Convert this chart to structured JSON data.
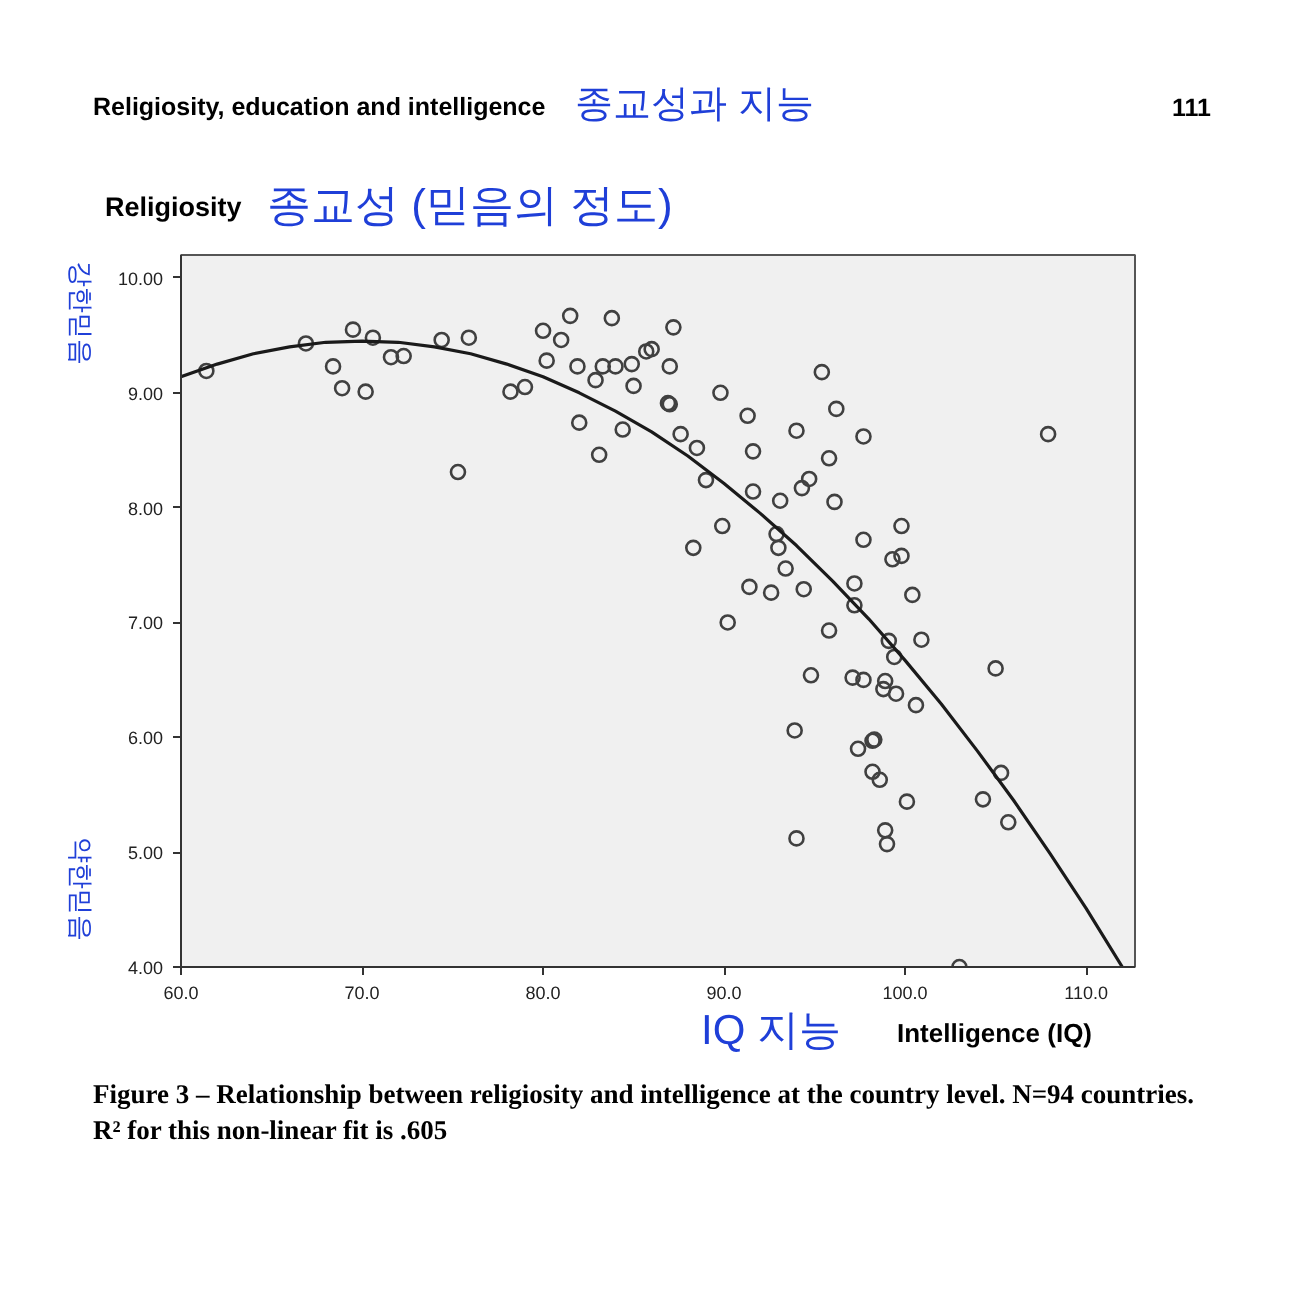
{
  "chart_data": {
    "type": "scatter",
    "title": "Religiosity, education and intelligence",
    "subtitle": "종교성과 지능",
    "ylabel": "Religiosity",
    "xlabel": "Intelligence (IQ)",
    "annotations": [
      "111",
      "종교성 (믿음의 정도)",
      "강한믿음",
      "약한믿음",
      "IQ 지능",
      "Figure 3 – Relationship between religiosity and intelligence at the country level. N=94 countries. R² for this non-linear fit is .605"
    ],
    "xlim": [
      60,
      112.7
    ],
    "ylim": [
      4,
      10.2
    ],
    "xticks": [
      {
        "value": 60,
        "label": "60.0"
      },
      {
        "value": 70,
        "label": "70.0"
      },
      {
        "value": 80,
        "label": "80.0"
      },
      {
        "value": 90,
        "label": "90.0"
      },
      {
        "value": 100,
        "label": "100.0"
      },
      {
        "value": 110,
        "label": "110.0"
      }
    ],
    "yticks": [
      {
        "value": 4,
        "label": "4.00"
      },
      {
        "value": 5,
        "label": "5.00"
      },
      {
        "value": 6,
        "label": "6.00"
      },
      {
        "value": 7,
        "label": "7.00"
      },
      {
        "value": 8,
        "label": "8.00"
      },
      {
        "value": 9,
        "label": "9.00"
      },
      {
        "value": 10,
        "label": "10.00"
      }
    ],
    "marker": "circle",
    "series": [
      {
        "color": "#404040",
        "x": [
          61.4,
          66.9,
          69.5,
          70.6,
          68.4,
          68.9,
          70.2,
          71.6,
          72.3,
          74.4,
          75.9,
          75.3,
          78.2,
          79.0,
          80.0,
          81.0,
          81.5,
          80.2,
          81.9,
          82.9,
          83.3,
          84.0,
          84.9,
          83.8,
          85.0,
          82.0,
          84.4,
          83.1,
          85.7,
          86.0,
          87.2,
          87.0,
          86.9,
          87.0,
          95.4,
          89.8,
          96.2,
          91.3,
          94.0,
          97.7,
          87.6,
          88.5,
          91.6,
          95.8,
          89.0,
          94.7,
          94.3,
          91.6,
          93.1,
          96.1,
          89.9,
          99.8,
          88.3,
          92.9,
          93.0,
          97.7,
          99.3,
          99.8,
          93.4,
          91.4,
          92.6,
          94.4,
          97.2,
          97.2,
          100.4,
          90.2,
          95.8,
          99.1,
          100.9,
          99.4,
          105.0,
          94.8,
          97.1,
          97.7,
          98.9,
          98.8,
          99.5,
          100.6,
          93.9,
          98.2,
          98.3,
          97.4,
          98.2,
          98.6,
          105.3,
          100.1,
          104.3,
          105.7,
          98.9,
          99.0,
          94.0,
          103.0,
          107.9
        ],
        "values": [
          9.19,
          9.43,
          9.55,
          9.48,
          9.23,
          9.04,
          9.01,
          9.31,
          9.32,
          9.46,
          9.48,
          8.31,
          9.01,
          9.05,
          9.54,
          9.46,
          9.67,
          9.28,
          9.23,
          9.11,
          9.23,
          9.23,
          9.25,
          9.65,
          9.06,
          8.74,
          8.68,
          8.46,
          9.36,
          9.38,
          9.57,
          9.23,
          8.91,
          8.9,
          9.18,
          9.0,
          8.86,
          8.8,
          8.67,
          8.62,
          8.64,
          8.52,
          8.49,
          8.43,
          8.24,
          8.25,
          8.17,
          8.14,
          8.06,
          8.05,
          7.84,
          7.84,
          7.65,
          7.77,
          7.65,
          7.72,
          7.55,
          7.58,
          7.47,
          7.31,
          7.26,
          7.29,
          7.34,
          7.15,
          7.24,
          7.0,
          6.93,
          6.84,
          6.85,
          6.7,
          6.6,
          6.54,
          6.52,
          6.5,
          6.49,
          6.42,
          6.38,
          6.28,
          6.06,
          5.97,
          5.98,
          5.9,
          5.7,
          5.63,
          5.69,
          5.44,
          5.46,
          5.26,
          5.19,
          5.07,
          5.12,
          4.0,
          8.64
        ]
      },
      {
        "type": "line",
        "color": "#1a1a1a",
        "marker": "none",
        "line_style": "solid",
        "x": [
          60,
          62,
          64,
          66,
          68,
          70,
          72,
          74,
          76,
          78,
          80,
          82,
          84,
          86,
          88,
          90,
          92,
          94,
          96,
          98,
          100,
          102,
          104,
          106,
          108,
          110,
          112
        ],
        "values": [
          9.14,
          9.25,
          9.34,
          9.4,
          9.44,
          9.45,
          9.44,
          9.4,
          9.34,
          9.25,
          9.14,
          9.0,
          8.84,
          8.66,
          8.45,
          8.21,
          7.95,
          7.67,
          7.36,
          7.03,
          6.67,
          6.29,
          5.88,
          5.45,
          4.99,
          4.51,
          4.0
        ]
      }
    ]
  }
}
